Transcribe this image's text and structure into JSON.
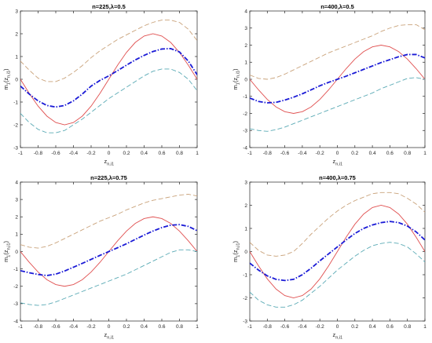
{
  "figure": {
    "layout": "2x2 grid of line plots"
  },
  "chart_data": [
    {
      "type": "line",
      "title": "n=225,λ=0.5",
      "xlabel": "z",
      "xlabel_sub": "n,i1",
      "ylabel": "m",
      "ylabel_sub": "1",
      "ylabel_arg": "(z",
      "ylabel_arg_sub": "n,i1",
      "ylabel_close": ")",
      "xlim": [
        -1,
        1
      ],
      "ylim": [
        -3,
        3
      ],
      "xticks": [
        "-1",
        "-0.8",
        "-0.6",
        "-0.4",
        "-0.2",
        "0",
        "0.2",
        "0.4",
        "0.6",
        "0.8",
        "1"
      ],
      "yticks": [
        "-3",
        "-2",
        "-1",
        "0",
        "1",
        "2",
        "3"
      ],
      "grid": false,
      "series": [
        {
          "role": "true-function",
          "color": "#e05050",
          "dash": "solid",
          "x": [
            -1,
            -0.9,
            -0.8,
            -0.7,
            -0.6,
            -0.5,
            -0.4,
            -0.3,
            -0.2,
            -0.1,
            0,
            0.1,
            0.2,
            0.3,
            0.4,
            0.5,
            0.6,
            0.7,
            0.8,
            0.9,
            1
          ],
          "y": [
            0,
            -0.62,
            -1.18,
            -1.62,
            -1.9,
            -2,
            -1.9,
            -1.62,
            -1.18,
            -0.62,
            0,
            0.62,
            1.18,
            1.62,
            1.9,
            2,
            1.9,
            1.62,
            1.18,
            0.62,
            0
          ]
        },
        {
          "role": "estimate",
          "color": "#1a1ad6",
          "dash": "dashdot",
          "x": [
            -1,
            -0.9,
            -0.8,
            -0.7,
            -0.6,
            -0.5,
            -0.4,
            -0.3,
            -0.2,
            -0.1,
            0,
            0.1,
            0.2,
            0.3,
            0.4,
            0.5,
            0.6,
            0.7,
            0.8,
            0.9,
            1
          ],
          "y": [
            -0.3,
            -0.65,
            -0.95,
            -1.15,
            -1.22,
            -1.15,
            -0.95,
            -0.65,
            -0.3,
            -0.05,
            0.15,
            0.38,
            0.62,
            0.85,
            1.05,
            1.22,
            1.33,
            1.35,
            1.2,
            0.8,
            0.2
          ]
        },
        {
          "role": "upper-band",
          "color": "#c9a27a",
          "dash": "dashed",
          "x": [
            -1,
            -0.9,
            -0.8,
            -0.7,
            -0.6,
            -0.5,
            -0.4,
            -0.3,
            -0.2,
            -0.1,
            0,
            0.1,
            0.2,
            0.3,
            0.4,
            0.5,
            0.6,
            0.7,
            0.8,
            0.9,
            1
          ],
          "y": [
            0.8,
            0.4,
            0.05,
            -0.1,
            -0.1,
            0.05,
            0.3,
            0.6,
            0.95,
            1.25,
            1.5,
            1.75,
            1.95,
            2.15,
            2.35,
            2.5,
            2.6,
            2.6,
            2.5,
            2.2,
            1.7
          ]
        },
        {
          "role": "lower-band",
          "color": "#5aaab5",
          "dash": "dashed",
          "x": [
            -1,
            -0.9,
            -0.8,
            -0.7,
            -0.6,
            -0.5,
            -0.4,
            -0.3,
            -0.2,
            -0.1,
            0,
            0.1,
            0.2,
            0.3,
            0.4,
            0.5,
            0.6,
            0.7,
            0.8,
            0.9,
            1
          ],
          "y": [
            -1.5,
            -1.9,
            -2.2,
            -2.35,
            -2.35,
            -2.25,
            -2,
            -1.75,
            -1.45,
            -1.15,
            -0.85,
            -0.6,
            -0.35,
            -0.1,
            0.15,
            0.35,
            0.45,
            0.45,
            0.3,
            0,
            -0.5
          ]
        }
      ]
    },
    {
      "type": "line",
      "title": "n=400,λ=0.5",
      "xlabel": "z",
      "xlabel_sub": "n,i1",
      "ylabel": "m",
      "ylabel_sub": "1",
      "ylabel_arg": "(z",
      "ylabel_arg_sub": "n,i1",
      "ylabel_close": ")",
      "xlim": [
        -1,
        1
      ],
      "ylim": [
        -4,
        4
      ],
      "xticks": [
        "-1",
        "-0.8",
        "-0.6",
        "-0.4",
        "-0.2",
        "0",
        "0.2",
        "0.4",
        "0.6",
        "0.8",
        "1"
      ],
      "yticks": [
        "-4",
        "-3",
        "-2",
        "-1",
        "0",
        "1",
        "2",
        "3",
        "4"
      ],
      "grid": false,
      "series": [
        {
          "role": "true-function",
          "color": "#e05050",
          "dash": "solid",
          "x": [
            -1,
            -0.9,
            -0.8,
            -0.7,
            -0.6,
            -0.5,
            -0.4,
            -0.3,
            -0.2,
            -0.1,
            0,
            0.1,
            0.2,
            0.3,
            0.4,
            0.5,
            0.6,
            0.7,
            0.8,
            0.9,
            1
          ],
          "y": [
            0,
            -0.62,
            -1.18,
            -1.62,
            -1.9,
            -2,
            -1.9,
            -1.62,
            -1.18,
            -0.62,
            0,
            0.62,
            1.18,
            1.62,
            1.9,
            2,
            1.9,
            1.62,
            1.18,
            0.62,
            0
          ]
        },
        {
          "role": "estimate",
          "color": "#1a1ad6",
          "dash": "dashdot",
          "x": [
            -1,
            -0.9,
            -0.8,
            -0.7,
            -0.6,
            -0.5,
            -0.4,
            -0.3,
            -0.2,
            -0.1,
            0,
            0.1,
            0.2,
            0.3,
            0.4,
            0.5,
            0.6,
            0.7,
            0.8,
            0.9,
            1
          ],
          "y": [
            -1.1,
            -1.3,
            -1.38,
            -1.35,
            -1.22,
            -1.05,
            -0.85,
            -0.62,
            -0.38,
            -0.18,
            0,
            0.18,
            0.38,
            0.58,
            0.78,
            0.98,
            1.15,
            1.32,
            1.45,
            1.45,
            1.25
          ]
        },
        {
          "role": "upper-band",
          "color": "#c9a27a",
          "dash": "dashed",
          "x": [
            -1,
            -0.9,
            -0.8,
            -0.7,
            -0.6,
            -0.5,
            -0.4,
            -0.3,
            -0.2,
            -0.1,
            0,
            0.1,
            0.2,
            0.3,
            0.4,
            0.5,
            0.6,
            0.7,
            0.8,
            0.9,
            1
          ],
          "y": [
            0.25,
            0.05,
            0,
            0.1,
            0.3,
            0.55,
            0.8,
            1.05,
            1.3,
            1.55,
            1.75,
            1.95,
            2.15,
            2.35,
            2.55,
            2.8,
            3,
            3.15,
            3.2,
            3.2,
            2.9
          ]
        },
        {
          "role": "lower-band",
          "color": "#5aaab5",
          "dash": "dashed",
          "x": [
            -1,
            -0.9,
            -0.8,
            -0.7,
            -0.6,
            -0.5,
            -0.4,
            -0.3,
            -0.2,
            -0.1,
            0,
            0.1,
            0.2,
            0.3,
            0.4,
            0.5,
            0.6,
            0.7,
            0.8,
            0.9,
            1
          ],
          "y": [
            -2.9,
            -3,
            -3.05,
            -2.95,
            -2.8,
            -2.6,
            -2.4,
            -2.2,
            -2,
            -1.8,
            -1.6,
            -1.4,
            -1.2,
            -1,
            -0.8,
            -0.55,
            -0.35,
            -0.15,
            0.05,
            0.1,
            0
          ]
        }
      ]
    },
    {
      "type": "line",
      "title": "n=225,λ=0.75",
      "xlabel": "z",
      "xlabel_sub": "n,i1",
      "ylabel": "m",
      "ylabel_sub": "1",
      "ylabel_arg": "(z",
      "ylabel_arg_sub": "n,i1",
      "ylabel_close": ")",
      "xlim": [
        -1,
        1
      ],
      "ylim": [
        -4,
        4
      ],
      "xticks": [
        "-1",
        "-0.8",
        "-0.6",
        "-0.4",
        "-0.2",
        "0",
        "0.2",
        "0.4",
        "0.6",
        "0.8",
        "1"
      ],
      "yticks": [
        "-4",
        "-3",
        "-2",
        "-1",
        "0",
        "1",
        "2",
        "3",
        "4"
      ],
      "grid": false,
      "series": [
        {
          "role": "true-function",
          "color": "#e05050",
          "dash": "solid",
          "x": [
            -1,
            -0.9,
            -0.8,
            -0.7,
            -0.6,
            -0.5,
            -0.4,
            -0.3,
            -0.2,
            -0.1,
            0,
            0.1,
            0.2,
            0.3,
            0.4,
            0.5,
            0.6,
            0.7,
            0.8,
            0.9,
            1
          ],
          "y": [
            0,
            -0.62,
            -1.18,
            -1.62,
            -1.9,
            -2,
            -1.9,
            -1.62,
            -1.18,
            -0.62,
            0,
            0.62,
            1.18,
            1.62,
            1.9,
            2,
            1.9,
            1.62,
            1.18,
            0.62,
            0
          ]
        },
        {
          "role": "estimate",
          "color": "#1a1ad6",
          "dash": "dashdot",
          "x": [
            -1,
            -0.9,
            -0.8,
            -0.7,
            -0.6,
            -0.5,
            -0.4,
            -0.3,
            -0.2,
            -0.1,
            0,
            0.1,
            0.2,
            0.3,
            0.4,
            0.5,
            0.6,
            0.7,
            0.8,
            0.9,
            1
          ],
          "y": [
            -1.1,
            -1.22,
            -1.32,
            -1.38,
            -1.3,
            -1.12,
            -0.9,
            -0.68,
            -0.45,
            -0.22,
            0,
            0.22,
            0.45,
            0.7,
            0.95,
            1.18,
            1.38,
            1.52,
            1.55,
            1.45,
            1.2
          ]
        },
        {
          "role": "upper-band",
          "color": "#c9a27a",
          "dash": "dashed",
          "x": [
            -1,
            -0.9,
            -0.8,
            -0.7,
            -0.6,
            -0.5,
            -0.4,
            -0.3,
            -0.2,
            -0.1,
            0,
            0.1,
            0.2,
            0.3,
            0.4,
            0.5,
            0.6,
            0.7,
            0.8,
            0.9,
            1
          ],
          "y": [
            0.4,
            0.25,
            0.2,
            0.3,
            0.5,
            0.75,
            1,
            1.25,
            1.5,
            1.75,
            1.95,
            2.15,
            2.4,
            2.6,
            2.8,
            2.95,
            3.05,
            3.15,
            3.25,
            3.3,
            3.2
          ]
        },
        {
          "role": "lower-band",
          "color": "#5aaab5",
          "dash": "dashed",
          "x": [
            -1,
            -0.9,
            -0.8,
            -0.7,
            -0.6,
            -0.5,
            -0.4,
            -0.3,
            -0.2,
            -0.1,
            0,
            0.1,
            0.2,
            0.3,
            0.4,
            0.5,
            0.6,
            0.7,
            0.8,
            0.9,
            1
          ],
          "y": [
            -2.95,
            -3.05,
            -3.1,
            -3.05,
            -2.9,
            -2.7,
            -2.5,
            -2.3,
            -2.1,
            -1.9,
            -1.7,
            -1.5,
            -1.3,
            -1.05,
            -0.8,
            -0.55,
            -0.3,
            -0.05,
            0.1,
            0.1,
            0
          ]
        }
      ]
    },
    {
      "type": "line",
      "title": "n=400,λ=0.75",
      "xlabel": "z",
      "xlabel_sub": "n,i1",
      "ylabel": "m",
      "ylabel_sub": "1",
      "ylabel_arg": "(z",
      "ylabel_arg_sub": "n,i1",
      "ylabel_close": ")",
      "xlim": [
        -1,
        1
      ],
      "ylim": [
        -3,
        3
      ],
      "xticks": [
        "-1",
        "-0.8",
        "-0.6",
        "-0.4",
        "-0.2",
        "0",
        "0.2",
        "0.4",
        "0.6",
        "0.8",
        "1"
      ],
      "yticks": [
        "-3",
        "-2",
        "-1",
        "0",
        "1",
        "2",
        "3"
      ],
      "grid": false,
      "series": [
        {
          "role": "true-function",
          "color": "#e05050",
          "dash": "solid",
          "x": [
            -1,
            -0.9,
            -0.8,
            -0.7,
            -0.6,
            -0.5,
            -0.4,
            -0.3,
            -0.2,
            -0.1,
            0,
            0.1,
            0.2,
            0.3,
            0.4,
            0.5,
            0.6,
            0.7,
            0.8,
            0.9,
            1
          ],
          "y": [
            0,
            -0.62,
            -1.18,
            -1.62,
            -1.9,
            -2,
            -1.9,
            -1.62,
            -1.18,
            -0.62,
            0,
            0.62,
            1.18,
            1.62,
            1.9,
            2,
            1.9,
            1.62,
            1.18,
            0.62,
            0
          ]
        },
        {
          "role": "estimate",
          "color": "#1a1ad6",
          "dash": "dashdot",
          "x": [
            -1,
            -0.9,
            -0.8,
            -0.7,
            -0.6,
            -0.5,
            -0.4,
            -0.3,
            -0.2,
            -0.1,
            0,
            0.1,
            0.2,
            0.3,
            0.4,
            0.5,
            0.6,
            0.7,
            0.8,
            0.9,
            1
          ],
          "y": [
            -0.5,
            -0.8,
            -1.05,
            -1.2,
            -1.25,
            -1.2,
            -1,
            -0.72,
            -0.4,
            -0.1,
            0.2,
            0.5,
            0.78,
            1,
            1.15,
            1.25,
            1.3,
            1.25,
            1.1,
            0.85,
            0.5
          ]
        },
        {
          "role": "upper-band",
          "color": "#c9a27a",
          "dash": "dashed",
          "x": [
            -1,
            -0.9,
            -0.8,
            -0.7,
            -0.6,
            -0.5,
            -0.4,
            -0.3,
            -0.2,
            -0.1,
            0,
            0.1,
            0.2,
            0.3,
            0.4,
            0.5,
            0.6,
            0.7,
            0.8,
            0.9,
            1
          ],
          "y": [
            0.4,
            0.05,
            -0.15,
            -0.2,
            -0.15,
            0,
            0.35,
            0.75,
            1.1,
            1.45,
            1.75,
            2,
            2.2,
            2.35,
            2.5,
            2.55,
            2.55,
            2.5,
            2.3,
            2.05,
            1.7
          ]
        },
        {
          "role": "lower-band",
          "color": "#5aaab5",
          "dash": "dashed",
          "x": [
            -1,
            -0.9,
            -0.8,
            -0.7,
            -0.6,
            -0.5,
            -0.4,
            -0.3,
            -0.2,
            -0.1,
            0,
            0.1,
            0.2,
            0.3,
            0.4,
            0.5,
            0.6,
            0.7,
            0.8,
            0.9,
            1
          ],
          "y": [
            -1.75,
            -2.1,
            -2.3,
            -2.4,
            -2.4,
            -2.3,
            -2.1,
            -1.8,
            -1.5,
            -1.15,
            -0.8,
            -0.5,
            -0.2,
            0.05,
            0.25,
            0.35,
            0.4,
            0.35,
            0.2,
            -0.1,
            -0.45
          ]
        }
      ]
    }
  ]
}
